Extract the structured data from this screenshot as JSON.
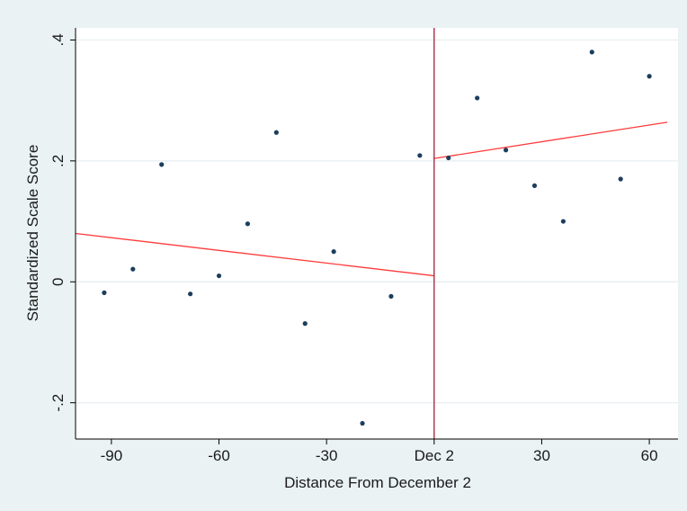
{
  "chart_data": {
    "type": "scatter",
    "title": "",
    "xlabel": "Distance From December 2",
    "ylabel": "Standardized Scale Score",
    "xlim": [
      -100,
      68
    ],
    "ylim": [
      -0.26,
      0.42
    ],
    "grid": "horizontal",
    "x_ticks": [
      {
        "value": -90,
        "label": "-90"
      },
      {
        "value": -60,
        "label": "-60"
      },
      {
        "value": -30,
        "label": "-30"
      },
      {
        "value": 0,
        "label": "Dec 2"
      },
      {
        "value": 30,
        "label": "30"
      },
      {
        "value": 60,
        "label": "60"
      }
    ],
    "y_ticks": [
      {
        "value": -0.2,
        "label": "-.2"
      },
      {
        "value": 0,
        "label": "0"
      },
      {
        "value": 0.2,
        "label": ".2"
      },
      {
        "value": 0.4,
        "label": ".4"
      }
    ],
    "cutoff_x": 0,
    "points": [
      {
        "x": -92,
        "y": -0.018
      },
      {
        "x": -84,
        "y": 0.021
      },
      {
        "x": -76,
        "y": 0.194
      },
      {
        "x": -68,
        "y": -0.02
      },
      {
        "x": -60,
        "y": 0.01
      },
      {
        "x": -52,
        "y": 0.096
      },
      {
        "x": -44,
        "y": 0.247
      },
      {
        "x": -36,
        "y": -0.069
      },
      {
        "x": -28,
        "y": 0.05
      },
      {
        "x": -20,
        "y": -0.234
      },
      {
        "x": -12,
        "y": -0.024
      },
      {
        "x": -4,
        "y": 0.209
      },
      {
        "x": 4,
        "y": 0.205
      },
      {
        "x": 12,
        "y": 0.304
      },
      {
        "x": 20,
        "y": 0.218
      },
      {
        "x": 28,
        "y": 0.159
      },
      {
        "x": 36,
        "y": 0.1
      },
      {
        "x": 44,
        "y": 0.38
      },
      {
        "x": 52,
        "y": 0.17
      },
      {
        "x": 60,
        "y": 0.34
      }
    ],
    "fit_lines": [
      {
        "x": [
          -100,
          0
        ],
        "y": [
          0.08,
          0.01
        ]
      },
      {
        "x": [
          0,
          65
        ],
        "y": [
          0.204,
          0.264
        ]
      }
    ],
    "colors": {
      "background": "#eaf2f3",
      "plot_area": "#ffffff",
      "points": "#1c3e5c",
      "fit_line": "#ff3b3b",
      "cutoff_line": "#a11e3a",
      "grid": "#e6eef0",
      "axis": "#000000"
    }
  }
}
